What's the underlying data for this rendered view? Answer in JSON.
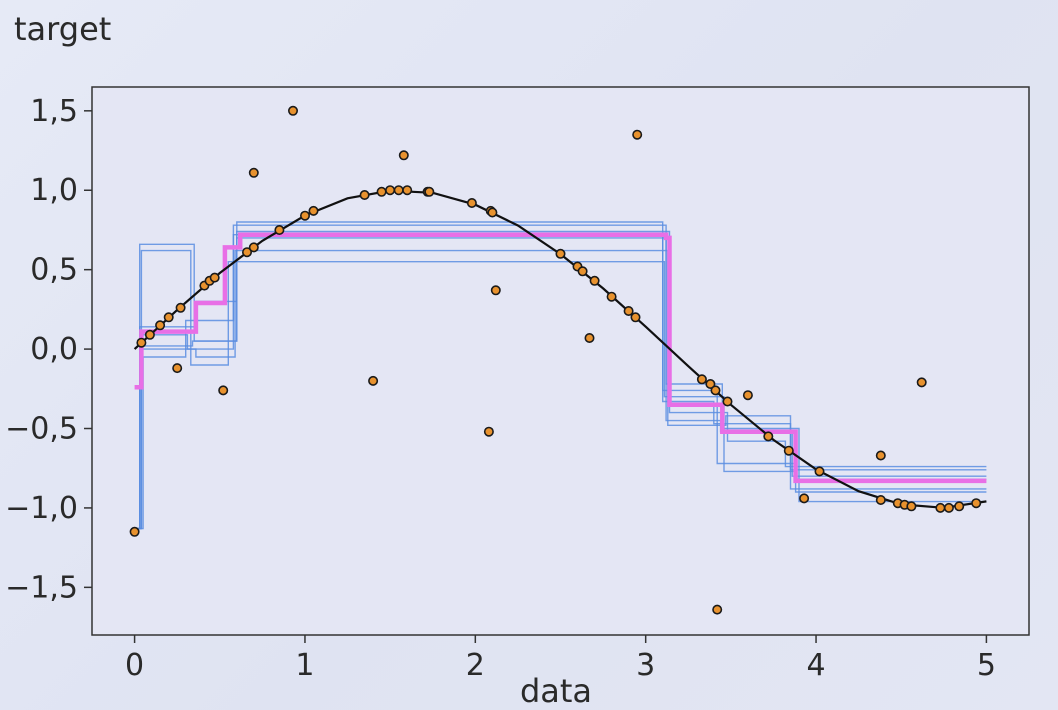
{
  "chart_data": {
    "type": "scatter",
    "title": "",
    "xlabel": "data",
    "ylabel": "target",
    "xlim": [
      -0.25,
      5.25
    ],
    "ylim": [
      -1.8,
      1.65
    ],
    "x_ticks": [
      0,
      1,
      2,
      3,
      4,
      5
    ],
    "x_tick_labels": [
      "0",
      "1",
      "2",
      "3",
      "4",
      "5"
    ],
    "y_ticks": [
      1.5,
      1.0,
      0.5,
      0.0,
      -0.5,
      -1.0,
      -1.5
    ],
    "y_tick_labels": [
      "1,5",
      "1,0",
      "0,5",
      "0,0",
      "−0,5",
      "−1,0",
      "−1,5"
    ],
    "grid": false,
    "colors": {
      "points": "#e8922e",
      "truth": "#111111",
      "ensemble": "#5b8de0",
      "bagged": "#e86fe6"
    },
    "scatter_points": {
      "x": [
        0.0,
        0.04,
        0.09,
        0.15,
        0.2,
        0.25,
        0.27,
        0.41,
        0.44,
        0.47,
        0.52,
        0.7,
        0.66,
        0.7,
        0.85,
        0.93,
        1.0,
        1.05,
        1.35,
        1.4,
        1.45,
        1.5,
        1.55,
        1.58,
        1.6,
        1.72,
        1.73,
        1.98,
        2.08,
        2.09,
        2.1,
        2.12,
        2.5,
        2.6,
        2.63,
        2.67,
        2.7,
        2.8,
        2.9,
        2.95,
        2.94,
        3.33,
        3.38,
        3.41,
        3.42,
        3.48,
        3.6,
        3.72,
        3.84,
        3.93,
        4.02,
        4.38,
        4.38,
        4.48,
        4.52,
        4.56,
        4.62,
        4.73,
        4.78,
        4.84,
        4.94
      ],
      "y": [
        -1.15,
        0.04,
        0.09,
        0.15,
        0.2,
        -0.12,
        0.26,
        0.4,
        0.43,
        0.45,
        -0.26,
        1.11,
        0.61,
        0.64,
        0.75,
        1.5,
        0.84,
        0.87,
        0.97,
        -0.2,
        0.99,
        1.0,
        1.0,
        1.22,
        1.0,
        0.99,
        0.99,
        0.92,
        -0.52,
        0.87,
        0.86,
        0.37,
        0.6,
        0.52,
        0.49,
        0.07,
        0.43,
        0.33,
        0.24,
        1.35,
        0.2,
        -0.19,
        -0.22,
        -0.26,
        -1.64,
        -0.33,
        -0.29,
        -0.55,
        -0.64,
        -0.94,
        -0.77,
        -0.67,
        -0.95,
        -0.97,
        -0.98,
        -0.99,
        -0.21,
        -1.0,
        -1.0,
        -0.99,
        -0.97
      ]
    },
    "series": [
      {
        "type": "step",
        "x": [
          0.0,
          0.04,
          0.36,
          0.53,
          0.62,
          3.12,
          3.14,
          3.45,
          3.85,
          3.88,
          5.0
        ],
        "y": [
          -0.24,
          0.11,
          0.29,
          0.64,
          0.72,
          0.7,
          -0.35,
          -0.52,
          -0.52,
          -0.83,
          -0.83
        ]
      },
      {
        "type": "step",
        "x": [
          0.0,
          0.03,
          0.34,
          0.6,
          3.1,
          3.4,
          3.85,
          5.0
        ],
        "y": [
          -1.13,
          0.02,
          0.05,
          0.8,
          -0.33,
          -0.47,
          -0.88,
          -0.88
        ]
      },
      {
        "type": "step",
        "x": [
          0.0,
          0.03,
          0.31,
          0.58,
          3.12,
          3.45,
          3.9,
          5.0
        ],
        "y": [
          -1.13,
          0.09,
          0.0,
          0.78,
          -0.22,
          -0.5,
          -0.96,
          -0.96
        ]
      },
      {
        "type": "step",
        "x": [
          0.0,
          0.03,
          0.36,
          0.6,
          3.14,
          3.48,
          3.82,
          5.0
        ],
        "y": [
          -1.13,
          0.14,
          0.3,
          0.74,
          -0.4,
          -0.58,
          -0.74,
          -0.74
        ]
      },
      {
        "type": "step",
        "x": [
          0.0,
          0.05,
          0.3,
          0.58,
          3.1,
          3.42,
          3.88,
          5.0
        ],
        "y": [
          -1.13,
          -0.05,
          0.18,
          0.72,
          -0.26,
          -0.72,
          -0.9,
          -0.9
        ]
      },
      {
        "type": "step",
        "x": [
          0.0,
          0.03,
          0.35,
          0.6,
          3.12,
          3.44,
          3.86,
          5.0
        ],
        "y": [
          -1.13,
          0.66,
          0.05,
          0.7,
          -0.45,
          -0.52,
          -0.8,
          -0.8
        ]
      },
      {
        "type": "step",
        "x": [
          0.0,
          0.04,
          0.33,
          0.55,
          3.11,
          3.46,
          3.88,
          5.0
        ],
        "y": [
          -1.13,
          0.62,
          -0.1,
          0.55,
          -0.3,
          -0.77,
          -0.82,
          -0.82
        ]
      },
      {
        "type": "step",
        "x": [
          0.0,
          0.04,
          0.36,
          0.59,
          3.13,
          3.47,
          3.85,
          5.0
        ],
        "y": [
          -1.13,
          0.0,
          -0.05,
          0.62,
          -0.48,
          -0.42,
          -0.76,
          -0.76
        ]
      },
      {
        "type": "line",
        "x": [
          0.0,
          0.25,
          0.5,
          0.75,
          1.0,
          1.25,
          1.5,
          1.75,
          2.0,
          2.25,
          2.5,
          2.75,
          3.0,
          3.25,
          3.5,
          3.75,
          4.0,
          4.25,
          4.5,
          4.75,
          5.0
        ],
        "y": [
          0.0,
          0.247,
          0.479,
          0.682,
          0.841,
          0.949,
          0.997,
          0.984,
          0.909,
          0.778,
          0.598,
          0.382,
          0.141,
          -0.108,
          -0.351,
          -0.572,
          -0.757,
          -0.895,
          -0.978,
          -0.999,
          -0.959
        ]
      }
    ]
  }
}
